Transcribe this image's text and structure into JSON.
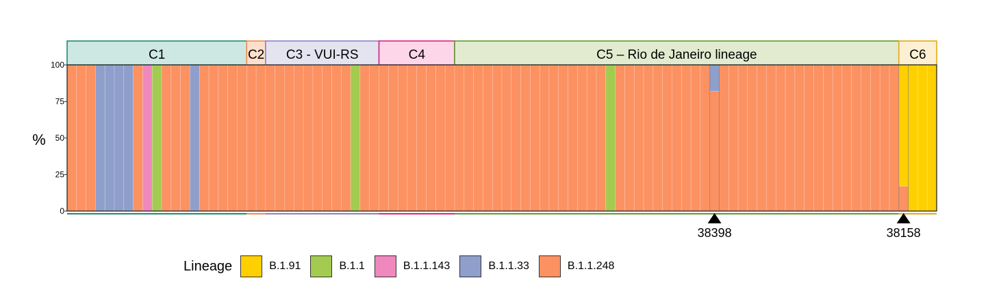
{
  "chart_data": {
    "type": "stacked-bar",
    "ylabel": "%",
    "ylim": [
      0,
      100
    ],
    "yticks": [
      0,
      25,
      50,
      75,
      100
    ],
    "legend": {
      "title": "Lineage",
      "placement": "bottom",
      "entries": [
        {
          "name": "B.1.91",
          "color": "#FFD000"
        },
        {
          "name": "B.1.1",
          "color": "#A3CB4F"
        },
        {
          "name": "B.1.1.143",
          "color": "#EF88BC"
        },
        {
          "name": "B.1.1.33",
          "color": "#8F9FCB"
        },
        {
          "name": "B.1.1.248",
          "color": "#FC9162"
        }
      ]
    },
    "clusters": [
      {
        "label": "C1",
        "start": 0,
        "end": 19,
        "fill": "#CDE8E3",
        "edge": "#1E8A6E"
      },
      {
        "label": "C2",
        "start": 19,
        "end": 21,
        "fill": "#FDE0CC",
        "edge": "#F28B4A"
      },
      {
        "label": "C3 - VUI-RS",
        "start": 21,
        "end": 33,
        "fill": "#E4E3F0",
        "edge": "#8A82C4"
      },
      {
        "label": "C4",
        "start": 33,
        "end": 41,
        "fill": "#FDD6EA",
        "edge": "#E0217A"
      },
      {
        "label": "C5 – Rio de Janeiro lineage",
        "start": 41,
        "end": 88,
        "fill": "#E2EBD0",
        "edge": "#5E9B2F"
      },
      {
        "label": "C6",
        "start": 88,
        "end": 92,
        "fill": "#FDF0D2",
        "edge": "#E6A817"
      }
    ],
    "n_samples": 92,
    "default_lineage": "B.1.1.248",
    "samples": [
      {
        "index": 3,
        "values": {
          "B.1.1.33": 100
        }
      },
      {
        "index": 4,
        "values": {
          "B.1.1.33": 100
        }
      },
      {
        "index": 5,
        "values": {
          "B.1.1.33": 100
        }
      },
      {
        "index": 6,
        "values": {
          "B.1.1.33": 100
        }
      },
      {
        "index": 8,
        "values": {
          "B.1.1.143": 100
        }
      },
      {
        "index": 9,
        "values": {
          "B.1.1": 100
        }
      },
      {
        "index": 13,
        "values": {
          "B.1.1.33": 100
        }
      },
      {
        "index": 30,
        "values": {
          "B.1.1": 100
        }
      },
      {
        "index": 57,
        "values": {
          "B.1.1": 100
        }
      },
      {
        "index": 68,
        "values": {
          "B.1.1.248": 82,
          "B.1.1.33": 18
        }
      },
      {
        "index": 88,
        "values": {
          "B.1.1.248": 17,
          "B.1.91": 83
        }
      },
      {
        "index": 89,
        "values": {
          "B.1.91": 100
        }
      },
      {
        "index": 90,
        "values": {
          "B.1.91": 100
        }
      },
      {
        "index": 91,
        "values": {
          "B.1.91": 100
        }
      }
    ],
    "stack_order": [
      "B.1.1.248",
      "B.1.1.33",
      "B.1.1.143",
      "B.1.1",
      "B.1.91"
    ],
    "markers": [
      {
        "label": "38398",
        "index": 68
      },
      {
        "label": "38158",
        "index": 88
      }
    ]
  }
}
